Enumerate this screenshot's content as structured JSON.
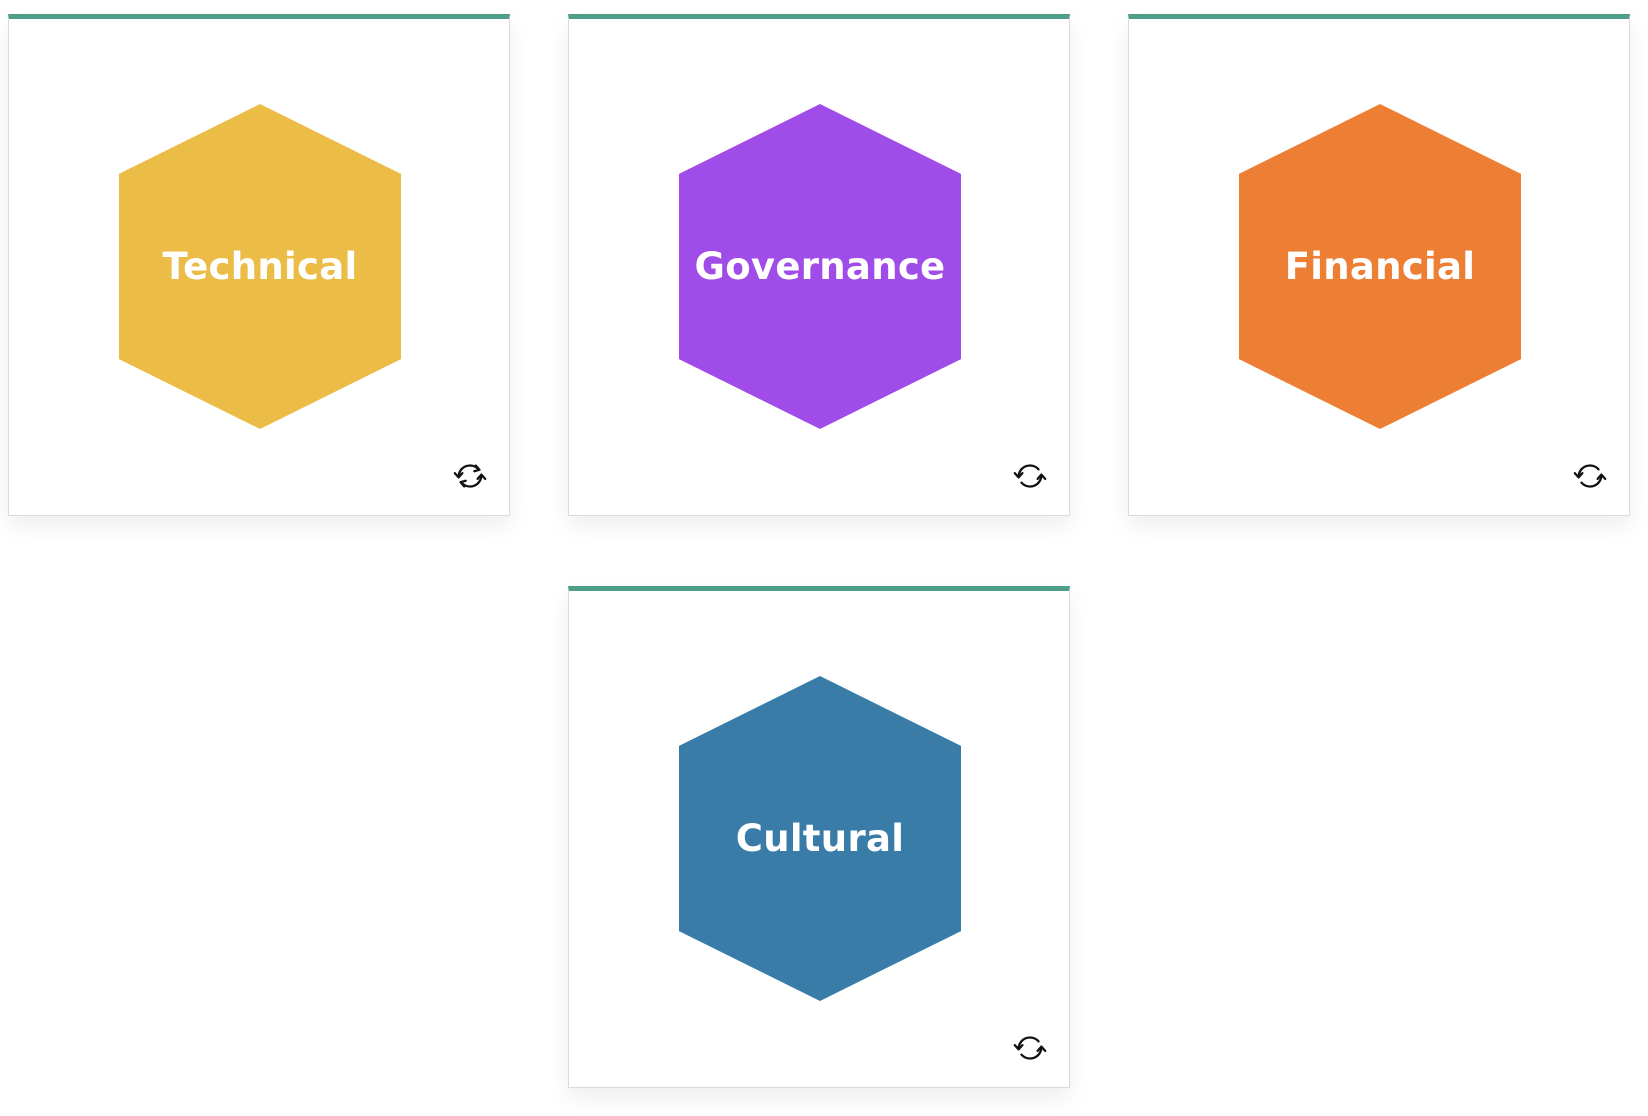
{
  "cards": [
    {
      "label": "Technical",
      "color": "#ebbd47",
      "flip_icon": "refresh-icon"
    },
    {
      "label": "Governance",
      "color": "#a04ce9",
      "flip_icon": "refresh-icon"
    },
    {
      "label": "Financial",
      "color": "#ed7f34",
      "flip_icon": "refresh-icon"
    },
    {
      "label": "Cultural",
      "color": "#387ca7",
      "flip_icon": "refresh-icon"
    }
  ],
  "accent_color": "#4f9e8a"
}
